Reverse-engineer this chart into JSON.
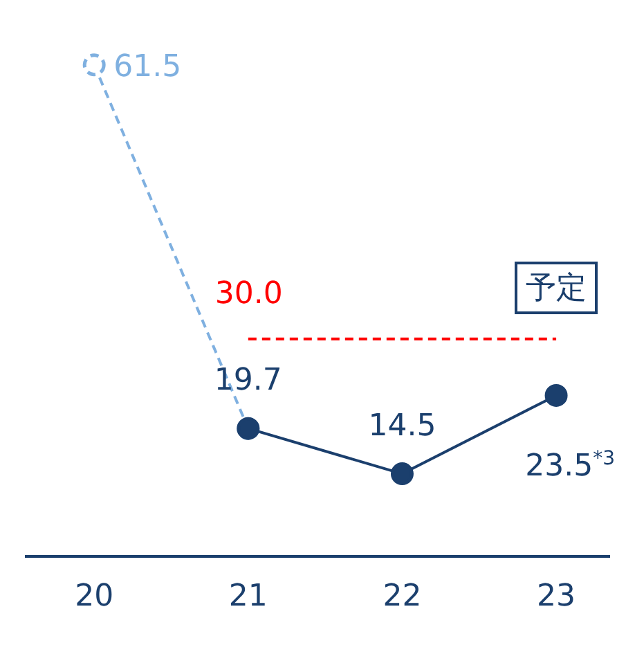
{
  "chart_data": {
    "type": "line",
    "categories": [
      "20",
      "21",
      "22",
      "23"
    ],
    "tick_labels": "x",
    "marker": "circle",
    "series": [
      {
        "color": "#7fb0e0",
        "values": [
          61.5,
          19.7,
          null,
          null
        ],
        "line_style": "dashed",
        "value_labels": [
          "61.5",
          null,
          null,
          null
        ]
      },
      {
        "color": "#1b3f6d",
        "values": [
          null,
          19.7,
          14.5,
          23.5
        ],
        "line_style": "solid",
        "value_labels": [
          null,
          "19.7",
          "14.5",
          "23.5$^{*3}$"
        ]
      }
    ],
    "ref_lines": [
      {
        "axis": "y",
        "value": 30,
        "label": "30.0",
        "color": "#ff0000",
        "line_style": "dashed"
      }
    ],
    "annotations": [
      "予定"
    ]
  }
}
